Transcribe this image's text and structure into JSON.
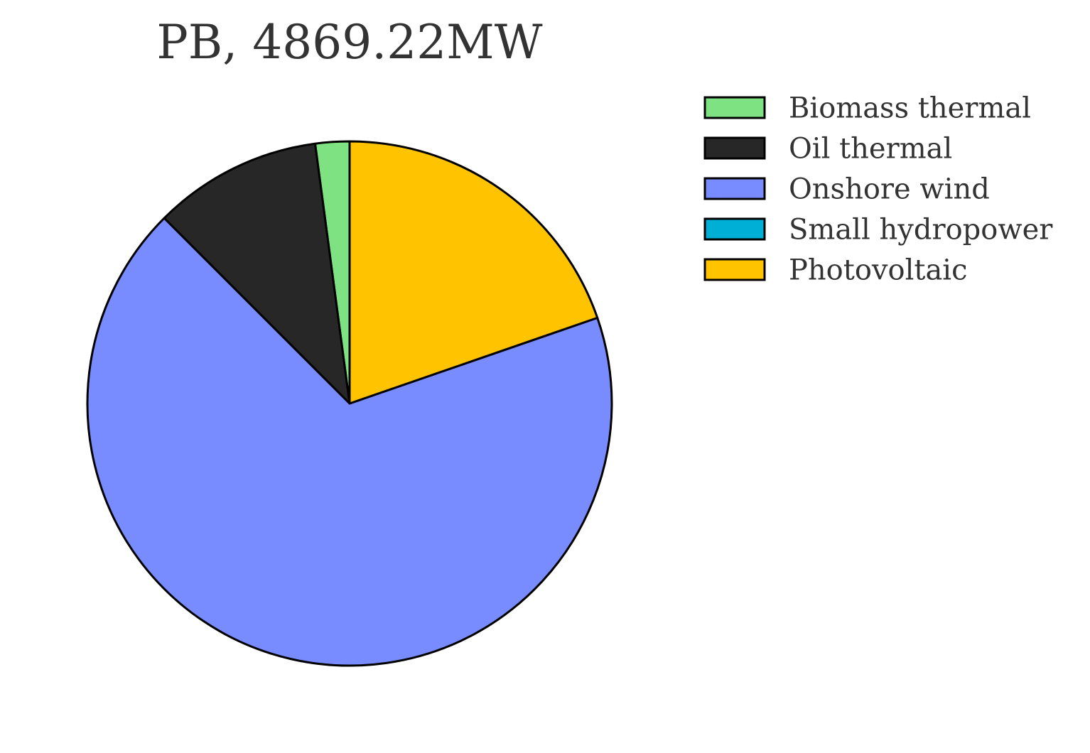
{
  "chart_data": {
    "type": "pie",
    "title": "PB, 4869.22MW",
    "legend_position": "right",
    "start_angle": "top",
    "direction": "counterclockwise",
    "slices": [
      {
        "label": "Biomass thermal",
        "value": 2.1,
        "color": "#7ee282"
      },
      {
        "label": "Oil thermal",
        "value": 10.4,
        "color": "#272727"
      },
      {
        "label": "Onshore wind",
        "value": 67.8,
        "color": "#788bff"
      },
      {
        "label": "Small hydropower",
        "value": 0.0,
        "color": "#00afd6"
      },
      {
        "label": "Photovoltaic",
        "value": 19.7,
        "color": "#ffc300"
      }
    ]
  }
}
